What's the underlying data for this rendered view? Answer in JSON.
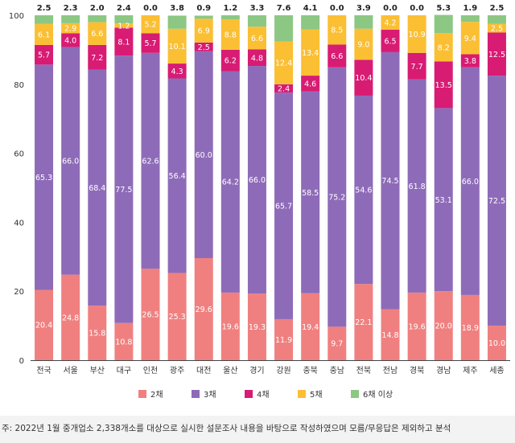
{
  "chart_data": {
    "type": "bar",
    "stacked": true,
    "categories": [
      "전국",
      "서울",
      "부산",
      "대구",
      "인천",
      "광주",
      "대전",
      "울산",
      "경기",
      "강원",
      "충북",
      "충남",
      "전북",
      "전남",
      "경북",
      "경남",
      "제주",
      "세종"
    ],
    "series": [
      {
        "name": "2채",
        "color": "#f08080",
        "values": [
          20.4,
          24.8,
          15.8,
          10.8,
          26.5,
          25.3,
          29.6,
          19.6,
          19.3,
          11.9,
          19.4,
          9.7,
          22.1,
          14.8,
          19.6,
          20.0,
          18.9,
          10.0
        ]
      },
      {
        "name": "3채",
        "color": "#8e6bb8",
        "values": [
          65.3,
          66.0,
          68.4,
          77.5,
          62.6,
          56.4,
          60.0,
          64.2,
          66.0,
          65.7,
          58.5,
          75.2,
          54.6,
          74.5,
          61.8,
          53.1,
          66.0,
          72.5
        ]
      },
      {
        "name": "4채",
        "color": "#d81b73",
        "values": [
          5.7,
          4.0,
          7.2,
          8.1,
          5.7,
          4.3,
          2.5,
          6.2,
          4.8,
          2.4,
          4.6,
          6.6,
          10.4,
          6.5,
          7.7,
          13.5,
          3.8,
          12.5
        ]
      },
      {
        "name": "5채",
        "color": "#fbbf34",
        "values": [
          6.1,
          2.9,
          6.6,
          1.2,
          5.2,
          10.1,
          6.9,
          8.8,
          6.6,
          12.4,
          13.4,
          8.5,
          9.0,
          4.2,
          10.9,
          8.2,
          9.4,
          2.5
        ]
      },
      {
        "name": "6채 이상",
        "color": "#8cc783",
        "values": [
          2.5,
          2.3,
          2.0,
          2.4,
          0.0,
          3.8,
          0.9,
          1.2,
          3.3,
          7.6,
          4.1,
          0.0,
          3.9,
          0.0,
          0.0,
          5.3,
          1.9,
          2.5
        ]
      }
    ],
    "top_labels": [
      "2.5",
      "2.3",
      "2.0",
      "2.4",
      "0.0",
      "3.8",
      "0.9",
      "1.2",
      "3.3",
      "7.6",
      "4.1",
      "0.0",
      "3.9",
      "0.0",
      "0.0",
      "5.3",
      "1.9",
      "2.5"
    ],
    "segment_labels": [
      [
        "20.4",
        "24.8",
        "15.8",
        "10.8",
        "26.5",
        "25.3",
        "29.6",
        "19.6",
        "19.3",
        "11.9",
        "19.4",
        "9.7",
        "22.1",
        "14.8",
        "19.6",
        "20.0",
        "18.9",
        "10.0"
      ],
      [
        "65.3",
        "66.0",
        "68.4",
        "77.5",
        "62.6",
        "56.4",
        "60.0",
        "64.2",
        "66.0",
        "65.7",
        "58.5",
        "75.2",
        "54.6",
        "74.5",
        "61.8",
        "53.1",
        "66.0",
        "72.5"
      ],
      [
        "5.7",
        "4.0",
        "7.2",
        "8.1",
        "5.7",
        "4.3",
        "2.5",
        "6.2",
        "4.8",
        "2.4",
        "4.6",
        "6.6",
        "10.4",
        "6.5",
        "7.7",
        "13.5",
        "3.8",
        "12.5"
      ],
      [
        "6.1",
        "2.9",
        "6.6",
        "1.2",
        "5.2",
        "10.1",
        "6.9",
        "8.8",
        "6.6",
        "12.4",
        "13.4",
        "8.5",
        "9.0",
        "4.2",
        "10.9",
        "8.2",
        "9.4",
        "2.5"
      ]
    ],
    "yticks": [
      "0",
      "20",
      "40",
      "60",
      "80",
      "100"
    ],
    "ylim": [
      0,
      100
    ],
    "title": "",
    "xlabel": "",
    "ylabel": "",
    "grid": false,
    "legend_position": "bottom"
  },
  "footnote": "주: 2022년 1월 중개업소 2,338개소를 대상으로 실시한 설문조사 내용을 바탕으로 작성하였으며 모름/무응답은 제외하고 분석"
}
